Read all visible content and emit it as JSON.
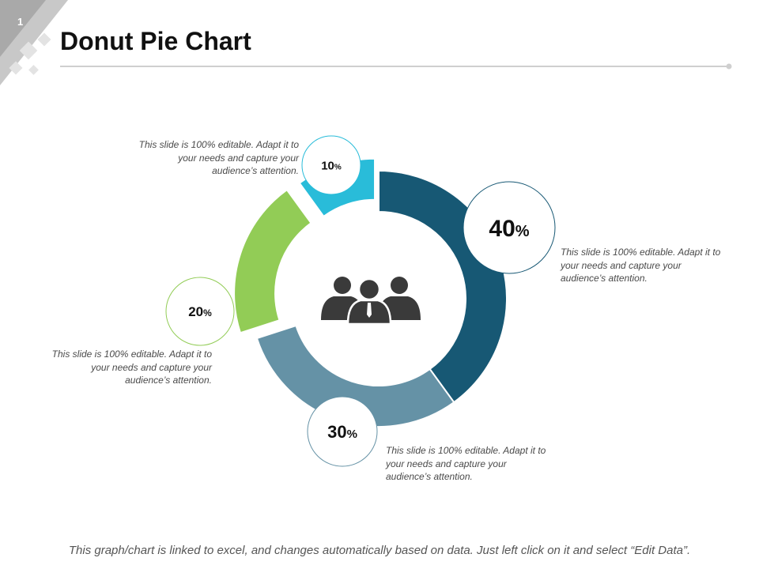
{
  "slide": {
    "number": "1",
    "title": "Donut Pie Chart",
    "footer": "This graph/chart is linked to excel, and changes automatically based on data. Just left click on it and select “Edit Data”.",
    "center_icon": "people-group-icon"
  },
  "chart_data": {
    "type": "pie",
    "variant": "donut",
    "exploded_slices": [
      "10%",
      "20%"
    ],
    "slices": [
      {
        "value": 40,
        "label": "40",
        "unit": "%",
        "color": "#175874",
        "callout": "This slide is 100% editable. Adapt it to your needs and capture your audience’s attention."
      },
      {
        "value": 30,
        "label": "30",
        "unit": "%",
        "color": "#6592a6",
        "callout": "This slide is 100% editable. Adapt it to your needs and capture your audience’s attention."
      },
      {
        "value": 20,
        "label": "20",
        "unit": "%",
        "color": "#92cc56",
        "callout": "This slide is 100% editable. Adapt it to your needs and capture your audience’s attention."
      },
      {
        "value": 10,
        "label": "10",
        "unit": "%",
        "color": "#29bcd9",
        "callout": "This slide is 100% editable. Adapt it to your needs and capture your audience’s attention."
      }
    ]
  }
}
